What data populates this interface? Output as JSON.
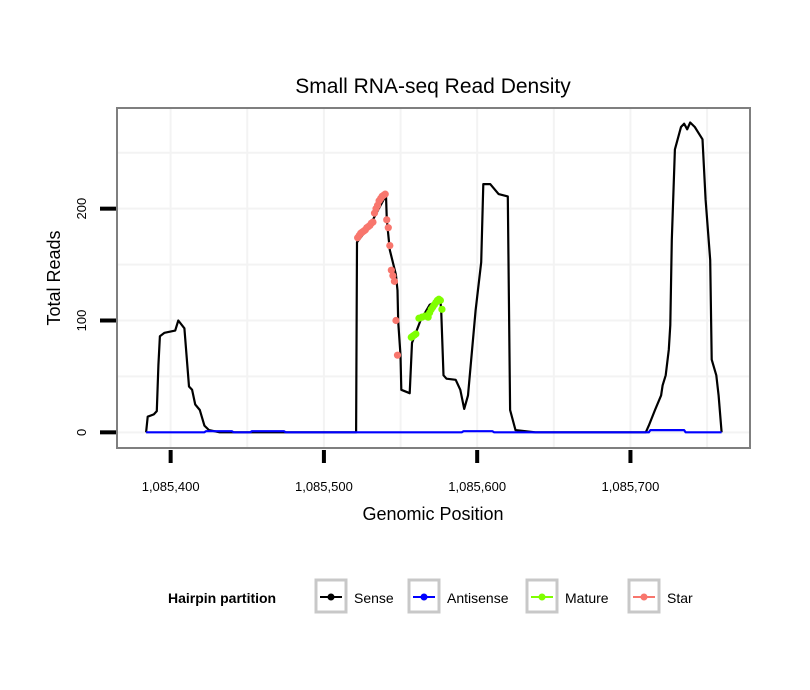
{
  "chart_data": {
    "type": "line",
    "title": "Small RNA-seq Read Density",
    "xlabel": "Genomic Position",
    "ylabel": "Total Reads",
    "xlim": [
      1085365,
      1085778
    ],
    "ylim": [
      -14,
      290
    ],
    "xticks": [
      1085400,
      1085500,
      1085600,
      1085700
    ],
    "xtick_labels": [
      "1,085,400",
      "1,085,500",
      "1,085,600",
      "1,085,700"
    ],
    "yticks": [
      0,
      100,
      200
    ],
    "ytick_labels": [
      "0",
      "100",
      "200"
    ],
    "grid": true,
    "legend": {
      "title": "Hairpin partition",
      "placement": "bottom",
      "entries": [
        "Sense",
        "Antisense",
        "Mature",
        "Star"
      ]
    },
    "series": [
      {
        "name": "Sense",
        "color": "#000000",
        "style": "line",
        "x": [
          1085384,
          1085385,
          1085389,
          1085391,
          1085392,
          1085393,
          1085396,
          1085403,
          1085405,
          1085409,
          1085412,
          1085414,
          1085416,
          1085419,
          1085422,
          1085425,
          1085432,
          1085521,
          1085521.6,
          1085530,
          1085540.5,
          1085541,
          1085543,
          1085547,
          1085548,
          1085548.5,
          1085550,
          1085550.5,
          1085556,
          1085557.5,
          1085563,
          1085569,
          1085576,
          1085576.5,
          1085578,
          1085580,
          1085586,
          1085589,
          1085591.5,
          1085594,
          1085599,
          1085602.6,
          1085604,
          1085608.5,
          1085614,
          1085620,
          1085621.5,
          1085625,
          1085638,
          1085710,
          1085712,
          1085716,
          1085720,
          1085721,
          1085723,
          1085725,
          1085726,
          1085727,
          1085729,
          1085733,
          1085735,
          1085737,
          1085739,
          1085742,
          1085747,
          1085749,
          1085752,
          1085753,
          1085756,
          1085757.5,
          1085759.5
        ],
        "y": [
          0,
          14,
          16,
          19,
          60,
          86,
          89,
          91,
          100,
          93,
          41,
          38,
          25,
          20,
          6,
          2,
          0,
          0,
          170,
          185,
          212,
          190,
          163,
          141,
          127,
          99,
          69,
          38,
          35,
          80,
          100,
          114,
          118,
          109,
          51,
          48,
          47,
          38,
          21,
          33,
          109,
          152,
          222,
          222,
          213,
          211,
          20,
          2,
          0,
          0,
          6,
          20,
          33,
          42,
          51,
          74,
          96,
          172,
          253,
          273,
          276,
          271,
          277,
          273,
          262,
          208,
          154,
          65,
          51,
          33,
          0
        ]
      },
      {
        "name": "Antisense",
        "color": "#0000ff",
        "style": "line",
        "x": [
          1085384,
          1085422,
          1085423,
          1085440,
          1085441,
          1085452,
          1085453,
          1085474,
          1085475,
          1085590,
          1085591,
          1085610,
          1085611,
          1085712,
          1085713,
          1085735,
          1085736,
          1085759.5
        ],
        "y": [
          0,
          0,
          1,
          1,
          0,
          0,
          1,
          1,
          0,
          0,
          1,
          1,
          0,
          0,
          2,
          2,
          0,
          0
        ]
      },
      {
        "name": "Mature",
        "color": "#7fff00",
        "style": "points",
        "x": [
          1085557,
          1085558,
          1085559,
          1085560,
          1085562,
          1085564,
          1085566,
          1085568,
          1085569,
          1085570,
          1085571,
          1085572,
          1085573,
          1085574,
          1085575,
          1085576,
          1085577
        ],
        "y": [
          85,
          86,
          87,
          88,
          102,
          103,
          104,
          103,
          107,
          110,
          112,
          114,
          116,
          118,
          119,
          118,
          110
        ]
      },
      {
        "name": "Star",
        "color": "#f8766d",
        "style": "points",
        "x": [
          1085522,
          1085523,
          1085524,
          1085525,
          1085526,
          1085527,
          1085528,
          1085529,
          1085530,
          1085531,
          1085532,
          1085533,
          1085534,
          1085535,
          1085536,
          1085537,
          1085538,
          1085539,
          1085540,
          1085541,
          1085542,
          1085543,
          1085544,
          1085545,
          1085546,
          1085547,
          1085548
        ],
        "y": [
          174,
          176,
          178,
          179,
          180,
          181,
          183,
          184,
          185,
          187,
          188,
          196,
          200,
          203,
          207,
          209,
          211,
          212,
          213,
          190,
          183,
          167,
          145,
          140,
          135,
          100,
          69
        ]
      }
    ]
  }
}
